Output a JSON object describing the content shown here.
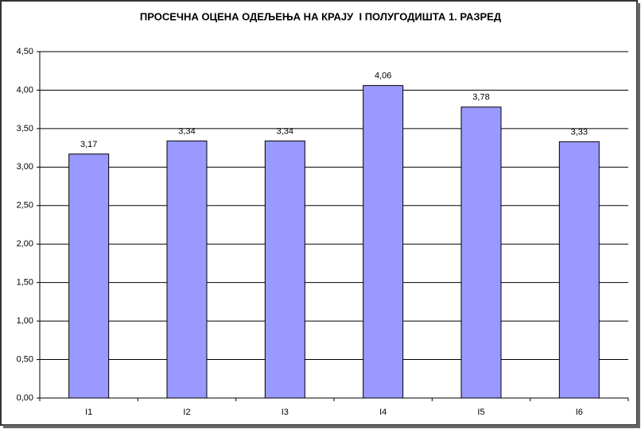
{
  "chart_data": {
    "type": "bar",
    "title": "ПРОСЕЧНА ОЦЕНА ОДЕЉЕЊА НА КРАЈУ  I ПОЛУГОДИШТА 1. РАЗРЕД",
    "categories": [
      "I1",
      "I2",
      "I3",
      "I4",
      "I5",
      "I6"
    ],
    "values": [
      3.17,
      3.34,
      3.34,
      4.06,
      3.78,
      3.33
    ],
    "value_labels": [
      "3,17",
      "3,34",
      "3,34",
      "4,06",
      "3,78",
      "3,33"
    ],
    "color": "#9999ff",
    "ylim": [
      0,
      4.5
    ],
    "yticks": [
      {
        "value": 0,
        "label": "0,00"
      },
      {
        "value": 0.5,
        "label": "0,50"
      },
      {
        "value": 1,
        "label": "1,00"
      },
      {
        "value": 1.5,
        "label": "1,50"
      },
      {
        "value": 2,
        "label": "2,00"
      },
      {
        "value": 2.5,
        "label": "2,50"
      },
      {
        "value": 3,
        "label": "3,00"
      },
      {
        "value": 3.5,
        "label": "3,50"
      },
      {
        "value": 4,
        "label": "4,00"
      },
      {
        "value": 4.5,
        "label": "4,50"
      }
    ],
    "grid": true
  }
}
